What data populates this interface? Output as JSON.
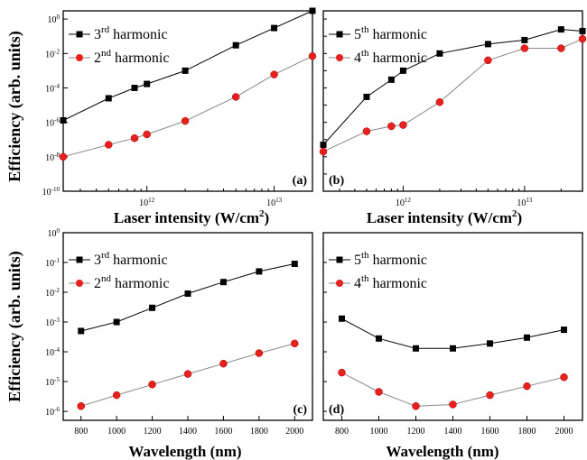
{
  "figure": {
    "ylabel_top": "Efficiency (arb. units)",
    "ylabel_bottom": "Efficiency (arb. units)",
    "xlabel_top_main": "Laser intensity (W/cm",
    "xlabel_top_sup": "2",
    "xlabel_top_end": ")",
    "xlabel_bottom": "Wavelength (nm)"
  },
  "chart_data": [
    {
      "id": "a",
      "type": "line",
      "panel_label": "(a)",
      "x_scale": "log",
      "y_scale": "log",
      "xlim": [
        220000000000.0,
        20000000000000.0
      ],
      "ylim": [
        1e-10,
        3
      ],
      "x_ticks": [
        {
          "value": 1000000000000.0,
          "base": "10",
          "exp": "12"
        },
        {
          "value": 10000000000000.0,
          "base": "10",
          "exp": "13"
        }
      ],
      "y_ticks": [
        {
          "value": 1,
          "base": "10",
          "exp": "0"
        },
        {
          "value": 0.01,
          "base": "10",
          "exp": "-2"
        },
        {
          "value": 0.0001,
          "base": "10",
          "exp": "-4"
        },
        {
          "value": 1e-06,
          "base": "10",
          "exp": "-6"
        },
        {
          "value": 1e-08,
          "base": "10",
          "exp": "-8"
        },
        {
          "value": 1e-10,
          "base": "10",
          "exp": "-10"
        }
      ],
      "series": [
        {
          "name_base": "3",
          "name_sup": "rd",
          "name_tail": "harmonic",
          "marker": "square",
          "color": "#000000",
          "x": [
            220000000000.0,
            500000000000.0,
            800000000000.0,
            1000000000000.0,
            2000000000000.0,
            5000000000000.0,
            10000000000000.0,
            20000000000000.0
          ],
          "y": [
            1.3e-06,
            2.5e-05,
            0.0001,
            0.00017,
            0.001,
            0.03,
            0.3,
            3
          ]
        },
        {
          "name_base": "2",
          "name_sup": "nd",
          "name_tail": "harmonic",
          "marker": "circle",
          "color": "#e8201e",
          "x": [
            220000000000.0,
            500000000000.0,
            800000000000.0,
            1000000000000.0,
            2000000000000.0,
            5000000000000.0,
            10000000000000.0,
            20000000000000.0
          ],
          "y": [
            1e-08,
            5e-08,
            1.2e-07,
            2e-07,
            1.2e-06,
            3e-05,
            0.0006,
            0.007
          ]
        }
      ]
    },
    {
      "id": "b",
      "type": "line",
      "panel_label": "(b)",
      "x_scale": "log",
      "y_scale": "log",
      "xlim": [
        220000000000.0,
        30000000000000.0
      ],
      "ylim": [
        1e-10,
        3
      ],
      "x_ticks": [
        {
          "value": 1000000000000.0,
          "base": "10",
          "exp": "12"
        },
        {
          "value": 10000000000000.0,
          "base": "10",
          "exp": "13"
        }
      ],
      "y_ticks": [],
      "series": [
        {
          "name_base": "5",
          "name_sup": "th",
          "name_tail": "harmonic",
          "marker": "square",
          "color": "#000000",
          "x": [
            220000000000.0,
            500000000000.0,
            800000000000.0,
            1000000000000.0,
            2000000000000.0,
            5000000000000.0,
            10000000000000.0,
            20000000000000.0,
            30000000000000.0
          ],
          "y": [
            5e-08,
            3e-05,
            0.0003,
            0.001,
            0.01,
            0.035,
            0.06,
            0.25,
            0.2
          ]
        },
        {
          "name_base": "4",
          "name_sup": "th",
          "name_tail": "harmonic",
          "marker": "circle",
          "color": "#e8201e",
          "x": [
            220000000000.0,
            500000000000.0,
            800000000000.0,
            1000000000000.0,
            2000000000000.0,
            5000000000000.0,
            10000000000000.0,
            20000000000000.0,
            30000000000000.0
          ],
          "y": [
            2e-08,
            3e-07,
            6e-07,
            7e-07,
            1.5e-05,
            0.004,
            0.02,
            0.02,
            0.07
          ]
        }
      ]
    },
    {
      "id": "c",
      "type": "line",
      "panel_label": "(c)",
      "x_scale": "linear",
      "y_scale": "log",
      "xlim": [
        700,
        2100
      ],
      "ylim": [
        5e-07,
        1
      ],
      "x_ticks": [
        800,
        1000,
        1200,
        1400,
        1600,
        1800,
        2000
      ],
      "y_ticks": [
        {
          "value": 1,
          "base": "10",
          "exp": "0"
        },
        {
          "value": 0.1,
          "base": "10",
          "exp": "-1"
        },
        {
          "value": 0.01,
          "base": "10",
          "exp": "-2"
        },
        {
          "value": 0.001,
          "base": "10",
          "exp": "-3"
        },
        {
          "value": 0.0001,
          "base": "10",
          "exp": "-4"
        },
        {
          "value": 1e-05,
          "base": "10",
          "exp": "-5"
        },
        {
          "value": 1e-06,
          "base": "10",
          "exp": "-6"
        }
      ],
      "series": [
        {
          "name_base": "3",
          "name_sup": "rd",
          "name_tail": "harmonic",
          "marker": "square",
          "color": "#000000",
          "x": [
            800,
            1000,
            1200,
            1400,
            1600,
            1800,
            2000
          ],
          "y": [
            0.0005,
            0.001,
            0.003,
            0.009,
            0.022,
            0.05,
            0.09
          ]
        },
        {
          "name_base": "2",
          "name_sup": "nd",
          "name_tail": "harmonic",
          "marker": "circle",
          "color": "#e8201e",
          "x": [
            800,
            1000,
            1200,
            1400,
            1600,
            1800,
            2000
          ],
          "y": [
            1.5e-06,
            3.5e-06,
            8e-06,
            1.8e-05,
            4e-05,
            9e-05,
            0.00019
          ]
        }
      ]
    },
    {
      "id": "d",
      "type": "line",
      "panel_label": "(d)",
      "x_scale": "linear",
      "y_scale": "log",
      "xlim": [
        700,
        2100
      ],
      "ylim": [
        5e-07,
        1
      ],
      "x_ticks": [
        800,
        1000,
        1200,
        1400,
        1600,
        1800,
        2000
      ],
      "y_ticks": [],
      "series": [
        {
          "name_base": "5",
          "name_sup": "th",
          "name_tail": "harmonic",
          "marker": "square",
          "color": "#000000",
          "x": [
            800,
            1000,
            1200,
            1400,
            1600,
            1800,
            2000
          ],
          "y": [
            0.0013,
            0.00028,
            0.00013,
            0.00013,
            0.00019,
            0.0003,
            0.00055
          ]
        },
        {
          "name_base": "4",
          "name_sup": "th",
          "name_tail": "harmonic",
          "marker": "circle",
          "color": "#e8201e",
          "x": [
            800,
            1000,
            1200,
            1400,
            1600,
            1800,
            2000
          ],
          "y": [
            2e-05,
            4.5e-06,
            1.5e-06,
            1.7e-06,
            3.5e-06,
            7e-06,
            1.4e-05
          ]
        }
      ]
    }
  ]
}
